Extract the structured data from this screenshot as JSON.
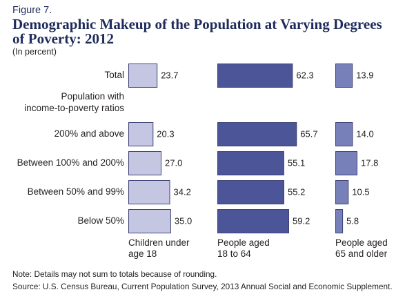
{
  "figure": {
    "label": "Figure 7.",
    "note": "Note: Details may not sum to totals because of rounding.",
    "source": "Source: U.S. Census Bureau, Current Population Survey, 2013 Annual Social and Economic Supplement."
  },
  "colors": {
    "title": "#1e2b5c",
    "text": "#231f20"
  },
  "chart_data": {
    "type": "bar",
    "orientation": "horizontal",
    "title": "Demographic Makeup of the Population at Varying Degrees of Poverty: 2012",
    "subtitle": "(In percent)",
    "row_group_label": [
      "Population with",
      "income-to-poverty ratios"
    ],
    "categories": [
      "Total",
      "200% and above",
      "Between 100% and 200%",
      "Between 50% and 99%",
      "Below 50%"
    ],
    "series": [
      {
        "name": "Children under age 18",
        "color": "#c5c7e2",
        "values": [
          23.7,
          20.3,
          27.0,
          34.2,
          35.0
        ]
      },
      {
        "name": "People aged 18 to 64",
        "color": "#4b5597",
        "values": [
          62.3,
          65.7,
          55.1,
          55.2,
          59.2
        ]
      },
      {
        "name": "People aged 65 and older",
        "color": "#7880ba",
        "values": [
          13.9,
          14.0,
          17.8,
          10.5,
          5.8
        ]
      }
    ],
    "grid": false,
    "legend": "bottom"
  }
}
